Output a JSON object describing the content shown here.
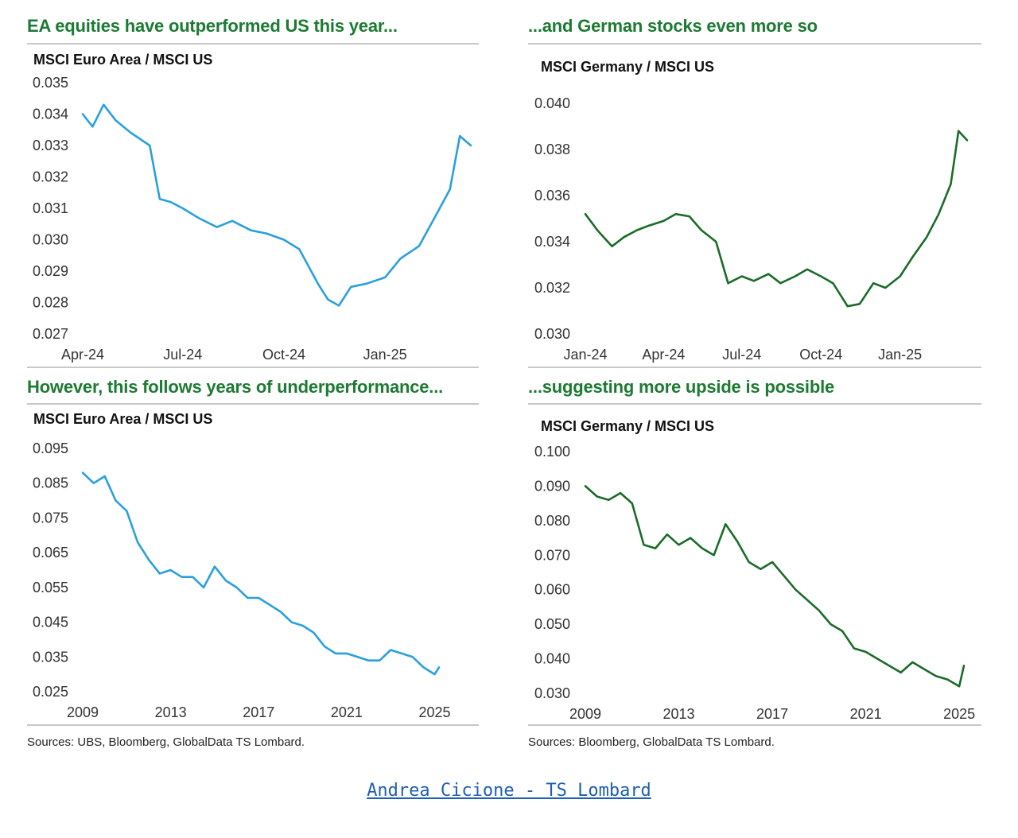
{
  "panels": [
    {
      "title": "EA equities have outperformed US this year...",
      "series_label": "MSCI Euro Area / MSCI US"
    },
    {
      "title": "...and German stocks even more so",
      "series_label": "MSCI Germany / MSCI US"
    },
    {
      "title": "However, this follows years of underperformance...",
      "series_label": "MSCI Euro Area / MSCI US"
    },
    {
      "title": "...suggesting more upside is possible",
      "series_label": "MSCI Germany / MSCI US"
    }
  ],
  "sources": {
    "left": "Sources: UBS, Bloomberg, GlobalData TS Lombard.",
    "right": "Sources: Bloomberg, GlobalData TS Lombard."
  },
  "credit": "Andrea Cicione - TS Lombard",
  "chart_data": [
    {
      "type": "line",
      "title": "EA equities have outperformed US this year...",
      "ylabel": "MSCI Euro Area / MSCI US",
      "color": "#29a0dd",
      "yticks": [
        "0.035",
        "0.034",
        "0.033",
        "0.032",
        "0.031",
        "0.030",
        "0.029",
        "0.028",
        "0.027"
      ],
      "ylim": [
        0.027,
        0.035
      ],
      "xticks": [
        "Apr-24",
        "Jul-24",
        "Oct-24",
        "Jan-25"
      ],
      "x": [
        "2024-04-01",
        "2024-04-10",
        "2024-04-20",
        "2024-05-01",
        "2024-05-15",
        "2024-06-01",
        "2024-06-10",
        "2024-06-20",
        "2024-07-01",
        "2024-07-15",
        "2024-08-01",
        "2024-08-15",
        "2024-09-01",
        "2024-09-15",
        "2024-10-01",
        "2024-10-15",
        "2024-11-01",
        "2024-11-10",
        "2024-11-20",
        "2024-12-01",
        "2024-12-15",
        "2025-01-01",
        "2025-01-15",
        "2025-02-01",
        "2025-02-15",
        "2025-03-01",
        "2025-03-10",
        "2025-03-20"
      ],
      "y": [
        0.034,
        0.0336,
        0.0343,
        0.0338,
        0.0334,
        0.033,
        0.0313,
        0.0312,
        0.031,
        0.0307,
        0.0304,
        0.0306,
        0.0303,
        0.0302,
        0.03,
        0.0297,
        0.0286,
        0.0281,
        0.0279,
        0.0285,
        0.0286,
        0.0288,
        0.0294,
        0.0298,
        0.0307,
        0.0316,
        0.0333,
        0.033
      ]
    },
    {
      "type": "line",
      "title": "...and German stocks even more so",
      "ylabel": "MSCI Germany / MSCI US",
      "color": "#1a6b28",
      "yticks": [
        "0.040",
        "0.038",
        "0.036",
        "0.034",
        "0.032",
        "0.030"
      ],
      "ylim": [
        0.03,
        0.04
      ],
      "xticks": [
        "Jan-24",
        "Apr-24",
        "Jul-24",
        "Oct-24",
        "Jan-25"
      ],
      "x": [
        "2024-01-01",
        "2024-01-15",
        "2024-02-01",
        "2024-02-15",
        "2024-03-01",
        "2024-03-15",
        "2024-04-01",
        "2024-04-15",
        "2024-05-01",
        "2024-05-15",
        "2024-06-01",
        "2024-06-15",
        "2024-07-01",
        "2024-07-15",
        "2024-08-01",
        "2024-08-15",
        "2024-09-01",
        "2024-09-15",
        "2024-10-01",
        "2024-10-15",
        "2024-11-01",
        "2024-11-15",
        "2024-12-01",
        "2024-12-15",
        "2025-01-01",
        "2025-01-15",
        "2025-02-01",
        "2025-02-15",
        "2025-03-01",
        "2025-03-10",
        "2025-03-20"
      ],
      "y": [
        0.0352,
        0.0345,
        0.0338,
        0.0342,
        0.0345,
        0.0347,
        0.0349,
        0.0352,
        0.0351,
        0.0345,
        0.034,
        0.0322,
        0.0325,
        0.0323,
        0.0326,
        0.0322,
        0.0325,
        0.0328,
        0.0325,
        0.0322,
        0.0312,
        0.0313,
        0.0322,
        0.032,
        0.0325,
        0.0333,
        0.0342,
        0.0352,
        0.0365,
        0.0388,
        0.0384
      ]
    },
    {
      "type": "line",
      "title": "However, this follows years of underperformance...",
      "ylabel": "MSCI Euro Area / MSCI US",
      "color": "#29a0dd",
      "yticks": [
        "0.095",
        "0.085",
        "0.075",
        "0.065",
        "0.055",
        "0.045",
        "0.035",
        "0.025"
      ],
      "ylim": [
        0.025,
        0.095
      ],
      "xticks": [
        "2009",
        "2013",
        "2017",
        "2021",
        "2025"
      ],
      "x": [
        2009.0,
        2009.5,
        2010.0,
        2010.5,
        2011.0,
        2011.5,
        2012.0,
        2012.5,
        2013.0,
        2013.5,
        2014.0,
        2014.5,
        2015.0,
        2015.5,
        2016.0,
        2016.5,
        2017.0,
        2017.5,
        2018.0,
        2018.5,
        2019.0,
        2019.5,
        2020.0,
        2020.5,
        2021.0,
        2021.5,
        2022.0,
        2022.5,
        2023.0,
        2023.5,
        2024.0,
        2024.5,
        2025.0,
        2025.2
      ],
      "y": [
        0.088,
        0.085,
        0.087,
        0.08,
        0.077,
        0.068,
        0.063,
        0.059,
        0.06,
        0.058,
        0.058,
        0.055,
        0.061,
        0.057,
        0.055,
        0.052,
        0.052,
        0.05,
        0.048,
        0.045,
        0.044,
        0.042,
        0.038,
        0.036,
        0.036,
        0.035,
        0.034,
        0.034,
        0.037,
        0.036,
        0.035,
        0.032,
        0.03,
        0.032
      ]
    },
    {
      "type": "line",
      "title": "...suggesting more upside is possible",
      "ylabel": "MSCI Germany / MSCI US",
      "color": "#1a6b28",
      "yticks": [
        "0.100",
        "0.090",
        "0.080",
        "0.070",
        "0.060",
        "0.050",
        "0.040",
        "0.030"
      ],
      "ylim": [
        0.03,
        0.1
      ],
      "xticks": [
        "2009",
        "2013",
        "2017",
        "2021",
        "2025"
      ],
      "x": [
        2009.0,
        2009.5,
        2010.0,
        2010.5,
        2011.0,
        2011.5,
        2012.0,
        2012.5,
        2013.0,
        2013.5,
        2014.0,
        2014.5,
        2015.0,
        2015.5,
        2016.0,
        2016.5,
        2017.0,
        2017.5,
        2018.0,
        2018.5,
        2019.0,
        2019.5,
        2020.0,
        2020.5,
        2021.0,
        2021.5,
        2022.0,
        2022.5,
        2023.0,
        2023.5,
        2024.0,
        2024.5,
        2025.0,
        2025.2
      ],
      "y": [
        0.09,
        0.087,
        0.086,
        0.088,
        0.085,
        0.073,
        0.072,
        0.076,
        0.073,
        0.075,
        0.072,
        0.07,
        0.079,
        0.074,
        0.068,
        0.066,
        0.068,
        0.064,
        0.06,
        0.057,
        0.054,
        0.05,
        0.048,
        0.043,
        0.042,
        0.04,
        0.038,
        0.036,
        0.039,
        0.037,
        0.035,
        0.034,
        0.032,
        0.038
      ]
    }
  ]
}
